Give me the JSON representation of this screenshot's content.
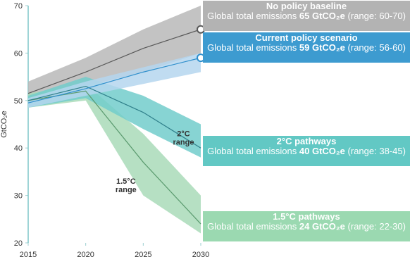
{
  "chart_data": {
    "type": "band-line",
    "ylabel": "GtCO₂e",
    "x": [
      2015,
      2020,
      2025,
      2030
    ],
    "xlim": [
      2015,
      2030
    ],
    "xticks": [
      2015,
      2020,
      2025,
      2030
    ],
    "ylim": [
      20,
      70
    ],
    "yticks": [
      20,
      30,
      40,
      50,
      60,
      70
    ],
    "box_prefix": "Global total emissions",
    "series": [
      {
        "name": "No policy baseline",
        "color": "#585858",
        "band_color": "#b9b9b9",
        "box_color": "#b3b3b3",
        "end_marker": true,
        "values": [
          51.5,
          56,
          61,
          65
        ],
        "low": [
          49.5,
          53,
          56,
          60
        ],
        "high": [
          54,
          59,
          65,
          70
        ],
        "range_label": "(range: 60-70)"
      },
      {
        "name": "1.5°C pathways",
        "color": "#5a9a6e",
        "band_color": "#a9dbb8",
        "box_color": "#9bd9b1",
        "end_marker": false,
        "values": [
          50,
          52,
          37,
          24
        ],
        "low": [
          48.5,
          50,
          30,
          22
        ],
        "high": [
          51.5,
          53.5,
          43,
          30
        ],
        "range_label": "(range: 22-30)"
      },
      {
        "name": "2°C pathways",
        "color": "#2f7f8a",
        "band_color": "#72cccb",
        "box_color": "#62c8c4",
        "end_marker": false,
        "values": [
          50,
          53,
          47.5,
          40
        ],
        "low": [
          48.5,
          50.5,
          44,
          38
        ],
        "high": [
          51,
          55,
          51,
          45
        ],
        "range_label": "(range: 38-45)"
      },
      {
        "name": "Current policy scenario",
        "color": "#2f8fcc",
        "band_color": "#b5d6ee",
        "box_color": "#3d9bd0",
        "end_marker": true,
        "values": [
          49.5,
          52.5,
          56,
          59
        ],
        "low": [
          48.5,
          51,
          53.5,
          56
        ],
        "high": [
          50.5,
          54,
          57,
          60
        ],
        "range_label": "(range: 56-60)"
      }
    ],
    "annotations": [
      {
        "text": "2°C\nrange",
        "x": 2028.5,
        "y": 42.5
      },
      {
        "text": "1.5°C\nrange",
        "x": 2023.5,
        "y": 32.5
      }
    ]
  }
}
